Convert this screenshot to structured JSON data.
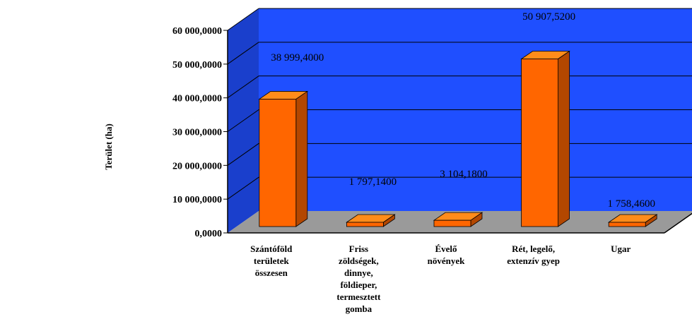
{
  "chart_data": {
    "type": "bar",
    "ylabel": "Terület (ha)",
    "ylim": [
      0,
      60000
    ],
    "yticks": [
      "0,0000",
      "10 000,0000",
      "20 000,0000",
      "30 000,0000",
      "40 000,0000",
      "50 000,0000",
      "60 000,0000"
    ],
    "categories": [
      [
        "Szántóföld",
        "területek",
        "összesen"
      ],
      [
        "Friss",
        "zöldségek,",
        "dinnye,",
        "földieper,",
        "termesztett",
        "gomba"
      ],
      [
        "Évelő",
        "növények"
      ],
      [
        "Rét, legelő,",
        "extenzív gyep"
      ],
      [
        "Ugar"
      ]
    ],
    "values": [
      38999.4,
      1797.14,
      3104.18,
      50907.52,
      1758.46
    ],
    "data_labels": [
      "38 999,4000",
      "1 797,1400",
      "3 104,1800",
      "50 907,5200",
      "1 758,4600"
    ],
    "grid": true,
    "colors": {
      "wall": "#1f4fff",
      "side_wall": "#1a3fcc",
      "floor": "#9a9a9a",
      "bar_front": "#ff6600",
      "bar_top": "#ff8c1a",
      "bar_side": "#b34700"
    }
  }
}
